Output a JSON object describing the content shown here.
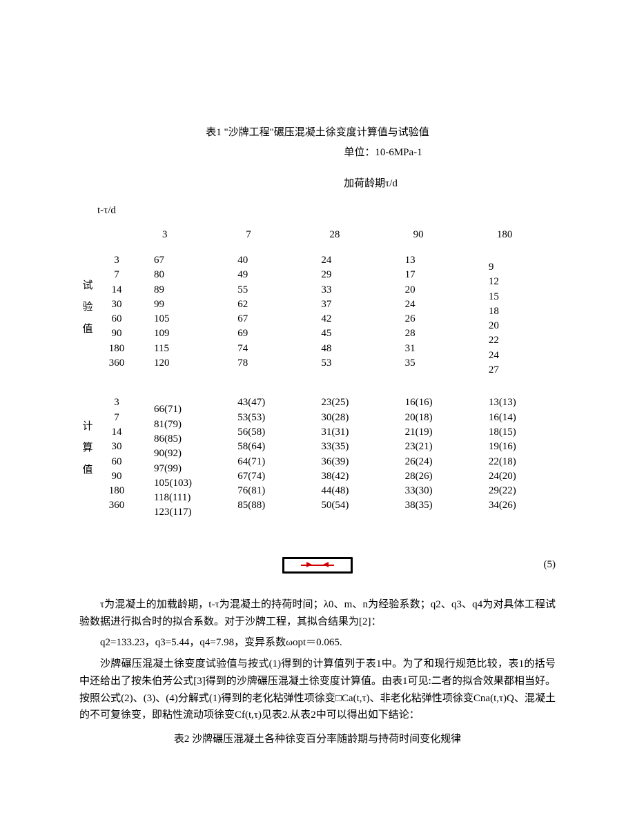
{
  "table1": {
    "title": "表1 \"沙牌工程\"碾压混凝土徐变度计算值与试验值",
    "unit": "单位：10-6MPa-1",
    "loading_age_header": "加荷龄期τ/d",
    "tt_label": "t-τ/d",
    "age_columns": [
      "3",
      "7",
      "28",
      "90",
      "180"
    ],
    "row_label_1": "试验值",
    "row_label_2": "计算值",
    "row_headers": [
      "3",
      "7",
      "14",
      "30",
      "60",
      "90",
      "180",
      "360"
    ],
    "test_data": {
      "c3": [
        "67",
        "80",
        "89",
        "99",
        "105",
        "109",
        "115",
        "120"
      ],
      "c7": [
        "40",
        "49",
        "55",
        "62",
        "67",
        "69",
        "74",
        "78"
      ],
      "c28": [
        "24",
        "29",
        "33",
        "37",
        "42",
        "45",
        "48",
        "53"
      ],
      "c90": [
        "13",
        "17",
        "20",
        "24",
        "26",
        "28",
        "31",
        "35"
      ],
      "c180": [
        "9",
        "12",
        "15",
        "18",
        "20",
        "22",
        "24",
        "27"
      ]
    },
    "calc_data": {
      "c3": [
        "66(71)",
        "81(79)",
        "86(85)",
        "90(92)",
        "97(99)",
        "105(103)",
        "118(111)",
        "123(117)"
      ],
      "c7": [
        "43(47)",
        "53(53)",
        "56(58)",
        "58(64)",
        "64(71)",
        "67(74)",
        "76(81)",
        "85(88)"
      ],
      "c28": [
        "23(25)",
        "30(28)",
        "31(31)",
        "33(35)",
        "36(39)",
        "38(42)",
        "44(48)",
        "50(54)"
      ],
      "c90": [
        "16(16)",
        "20(18)",
        "21(19)",
        "23(21)",
        "26(24)",
        "28(26)",
        "33(30)",
        "38(35)"
      ],
      "c180": [
        "13(13)",
        "16(14)",
        "18(15)",
        "19(16)",
        "22(18)",
        "24(20)",
        "29(22)",
        "34(26)"
      ]
    }
  },
  "equation": {
    "number": "(5)"
  },
  "paragraphs": {
    "p1": "τ为混凝土的加载龄期，t-τ为混凝土的持荷时间；λ0、m、n为经验系数；q2、q3、q4为对具体工程试验数据进行拟合时的拟合系数。对于沙牌工程，其拟合结果为[2]：",
    "p2": "q2=133.23，q3=5.44，q4=7.98，变异系数ωopt＝0.065.",
    "p3": "沙牌碾压混凝土徐变度试验值与按式(1)得到的计算值列于表1中。为了和现行规范比较，表1的括号中还给出了按朱伯芳公式[3]得到的沙牌碾压混凝土徐变度计算值。由表1可见:二者的拟合效果都相当好。按照公式(2)、(3)、(4)分解式(1)得到的老化粘弹性项徐变□Ca(t,τ)、非老化粘弹性项徐变Cna(t,τ)Q、混凝土的不可复徐变，即粘性流动项徐变Cf(t,τ)见表2.从表2中可以得出如下结论："
  },
  "table2": {
    "title": "表2 沙牌碾压混凝土各种徐变百分率随龄期与持荷时间变化规律"
  }
}
